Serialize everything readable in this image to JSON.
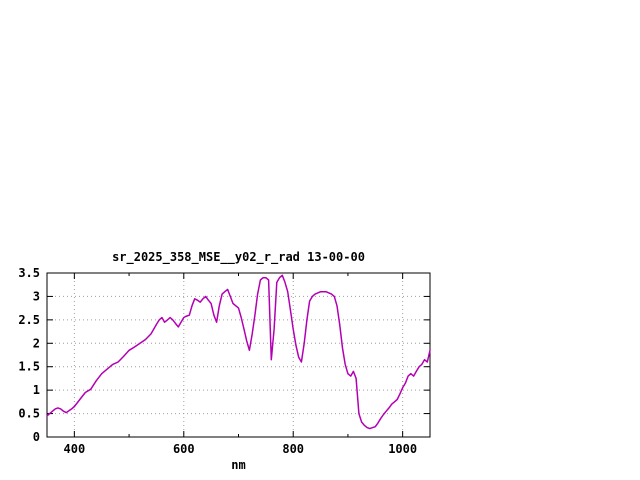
{
  "window": {
    "background_color": "#ffffff"
  },
  "chart_data": {
    "type": "line",
    "title": "sr_2025_358_MSE__y02_r_rad 13-00-00",
    "xlabel": "nm",
    "ylabel": "",
    "xlim": [
      350,
      1050
    ],
    "ylim": [
      0,
      3.5
    ],
    "xticks_major": [
      400,
      600,
      800,
      1000
    ],
    "xticks_minor": [
      500,
      700,
      900
    ],
    "yticks": [
      0,
      0.5,
      1,
      1.5,
      2,
      2.5,
      3,
      3.5
    ],
    "grid": true,
    "grid_color": "#9e9e9e",
    "legend_position": "none",
    "series": [
      {
        "name": "sr_2025_358_MSE__y02_r_rad",
        "color": "#b400b4",
        "x": [
          350,
          355,
          360,
          365,
          370,
          375,
          380,
          385,
          390,
          395,
          400,
          410,
          420,
          430,
          440,
          450,
          460,
          470,
          480,
          490,
          500,
          510,
          520,
          530,
          540,
          550,
          555,
          560,
          565,
          570,
          575,
          580,
          585,
          590,
          595,
          600,
          605,
          610,
          615,
          620,
          625,
          630,
          635,
          640,
          645,
          650,
          655,
          660,
          665,
          670,
          675,
          680,
          685,
          690,
          695,
          700,
          705,
          710,
          715,
          720,
          725,
          730,
          735,
          740,
          745,
          750,
          755,
          760,
          765,
          770,
          775,
          780,
          785,
          790,
          795,
          800,
          805,
          810,
          815,
          820,
          825,
          830,
          835,
          840,
          850,
          860,
          870,
          875,
          880,
          885,
          890,
          895,
          900,
          905,
          910,
          915,
          920,
          925,
          930,
          935,
          940,
          945,
          950,
          955,
          960,
          965,
          970,
          975,
          980,
          985,
          990,
          995,
          1000,
          1005,
          1010,
          1015,
          1020,
          1025,
          1030,
          1035,
          1040,
          1045,
          1050
        ],
        "y": [
          0.45,
          0.5,
          0.55,
          0.6,
          0.62,
          0.6,
          0.55,
          0.52,
          0.56,
          0.6,
          0.65,
          0.8,
          0.95,
          1.02,
          1.2,
          1.35,
          1.45,
          1.55,
          1.6,
          1.72,
          1.85,
          1.92,
          2.0,
          2.08,
          2.2,
          2.4,
          2.5,
          2.55,
          2.45,
          2.5,
          2.55,
          2.5,
          2.42,
          2.35,
          2.45,
          2.55,
          2.58,
          2.6,
          2.8,
          2.95,
          2.92,
          2.88,
          2.95,
          3.0,
          2.92,
          2.85,
          2.6,
          2.45,
          2.8,
          3.05,
          3.1,
          3.15,
          3.0,
          2.85,
          2.8,
          2.75,
          2.55,
          2.3,
          2.05,
          1.85,
          2.2,
          2.6,
          3.05,
          3.35,
          3.4,
          3.4,
          3.35,
          1.65,
          2.3,
          3.3,
          3.4,
          3.45,
          3.3,
          3.1,
          2.7,
          2.3,
          1.95,
          1.7,
          1.6,
          2.0,
          2.5,
          2.9,
          3.0,
          3.05,
          3.1,
          3.1,
          3.05,
          3.0,
          2.8,
          2.4,
          1.9,
          1.55,
          1.35,
          1.3,
          1.4,
          1.25,
          0.5,
          0.32,
          0.25,
          0.2,
          0.18,
          0.2,
          0.22,
          0.3,
          0.4,
          0.48,
          0.55,
          0.62,
          0.7,
          0.75,
          0.8,
          0.92,
          1.05,
          1.15,
          1.3,
          1.35,
          1.3,
          1.4,
          1.5,
          1.55,
          1.65,
          1.6,
          1.85
        ]
      }
    ]
  }
}
